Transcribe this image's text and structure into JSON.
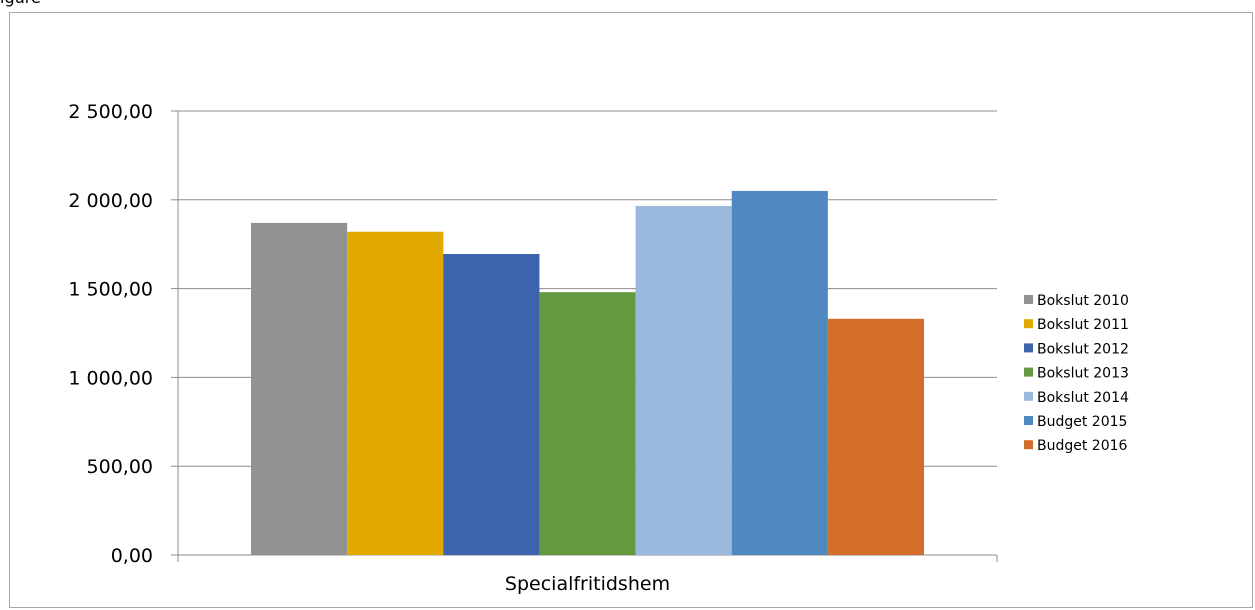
{
  "top_text": "igure",
  "chart_data": {
    "type": "bar",
    "categories": [
      "Specialfritidshem"
    ],
    "series": [
      {
        "name": "Bokslut 2010",
        "values": [
          1870
        ],
        "color": "#929292"
      },
      {
        "name": "Bokslut 2011",
        "values": [
          1820
        ],
        "color": "#e2aa00"
      },
      {
        "name": "Bokslut 2012",
        "values": [
          1695
        ],
        "color": "#3c63ab"
      },
      {
        "name": "Bokslut 2013",
        "values": [
          1480
        ],
        "color": "#639a3f"
      },
      {
        "name": "Bokslut 2014",
        "values": [
          1965
        ],
        "color": "#9bb9de"
      },
      {
        "name": "Budget 2015",
        "values": [
          2050
        ],
        "color": "#4f89bf"
      },
      {
        "name": "Budget 2016",
        "values": [
          1330
        ],
        "color": "#d36d2a"
      }
    ],
    "ylim": [
      0,
      2500
    ],
    "yticks": [
      "0,00",
      "500,00",
      "1 000,00",
      "1 500,00",
      "2 000,00",
      "2 500,00"
    ],
    "grid": true,
    "legend_position": "right",
    "xlabel": "",
    "ylabel": ""
  }
}
